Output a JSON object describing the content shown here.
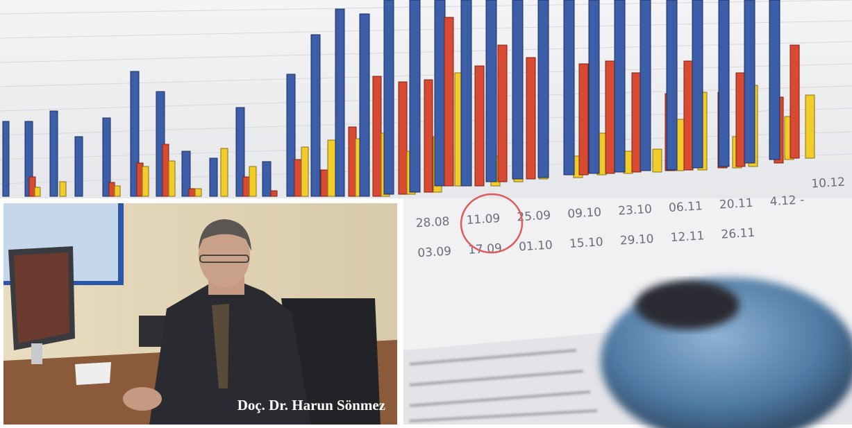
{
  "photo_caption": "Doç. Dr. Harun Sönmez",
  "chart_photo": {
    "dates_top": [
      "28.08",
      "11.09",
      "25.09",
      "09.10",
      "23.10",
      "06.11",
      "20.11",
      "4.12 -"
    ],
    "dates_bottom": [
      "03.09",
      "17.09",
      "01.10",
      "15.10",
      "29.10",
      "12.11",
      "26.11",
      "10.12"
    ]
  }
}
